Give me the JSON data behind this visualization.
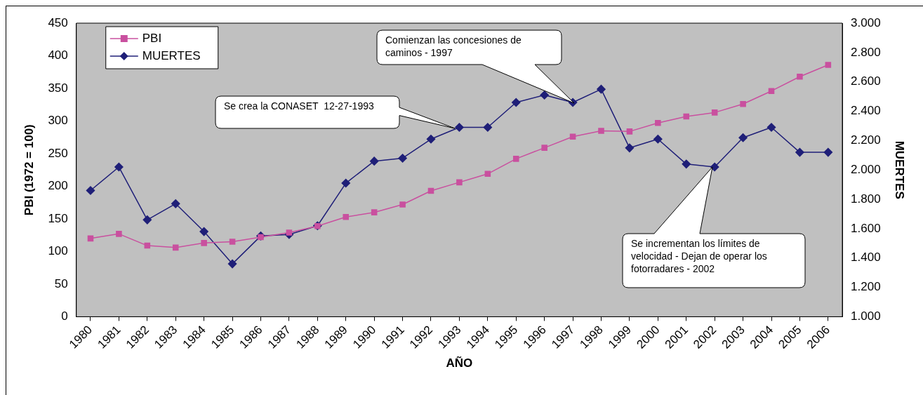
{
  "chart_data": {
    "type": "line",
    "xlabel": "AÑO",
    "ylabel": "PBI (1972 = 100)",
    "y2label": "MUERTES",
    "categories": [
      "1980",
      "1981",
      "1982",
      "1983",
      "1984",
      "1985",
      "1986",
      "1987",
      "1988",
      "1989",
      "1990",
      "1991",
      "1992",
      "1993",
      "1994",
      "1995",
      "1996",
      "1997",
      "1998",
      "1999",
      "2000",
      "2001",
      "2002",
      "2003",
      "2004",
      "2005",
      "2006"
    ],
    "series": [
      {
        "name": "PBI",
        "color": "#c9509f",
        "marker": "square",
        "values": [
          120,
          127,
          109,
          106,
          113,
          115,
          122,
          129,
          139,
          153,
          160,
          172,
          193,
          206,
          219,
          242,
          259,
          276,
          285,
          284,
          297,
          307,
          313,
          326,
          346,
          368,
          386
        ]
      },
      {
        "name": "MUERTES",
        "color": "#1f1f78",
        "marker": "diamond",
        "axis": "y2",
        "values": [
          1860,
          2020,
          1660,
          1770,
          1580,
          1360,
          1550,
          1560,
          1620,
          1910,
          2060,
          2080,
          2210,
          2290,
          2290,
          2460,
          2510,
          2460,
          2550,
          2150,
          2210,
          2040,
          2020,
          2220,
          2290,
          2120,
          2120
        ]
      }
    ],
    "ylim": [
      0,
      450
    ],
    "yticks": [
      0,
      50,
      100,
      150,
      200,
      250,
      300,
      350,
      400,
      450
    ],
    "y2lim": [
      1000,
      3000
    ],
    "y2ticks": [
      {
        "value": 1000,
        "label": "1.000"
      },
      {
        "value": 1200,
        "label": "1.200"
      },
      {
        "value": 1400,
        "label": "1.400"
      },
      {
        "value": 1600,
        "label": "1.600"
      },
      {
        "value": 1800,
        "label": "1.800"
      },
      {
        "value": 2000,
        "label": "2.000"
      },
      {
        "value": 2200,
        "label": "2.200"
      },
      {
        "value": 2400,
        "label": "2.400"
      },
      {
        "value": 2600,
        "label": "2.600"
      },
      {
        "value": 2800,
        "label": "2.800"
      },
      {
        "value": 3000,
        "label": "3.000"
      }
    ],
    "annotations": [
      "Se crea la CONASET  12-27-1993",
      "Comienzan las concesiones de caminos - 1997",
      "Se incrementan los límites de velocidad - Dejan de operar los fotorradares - 2002"
    ],
    "legend": "top left",
    "grid": false,
    "line_style": "solid"
  }
}
